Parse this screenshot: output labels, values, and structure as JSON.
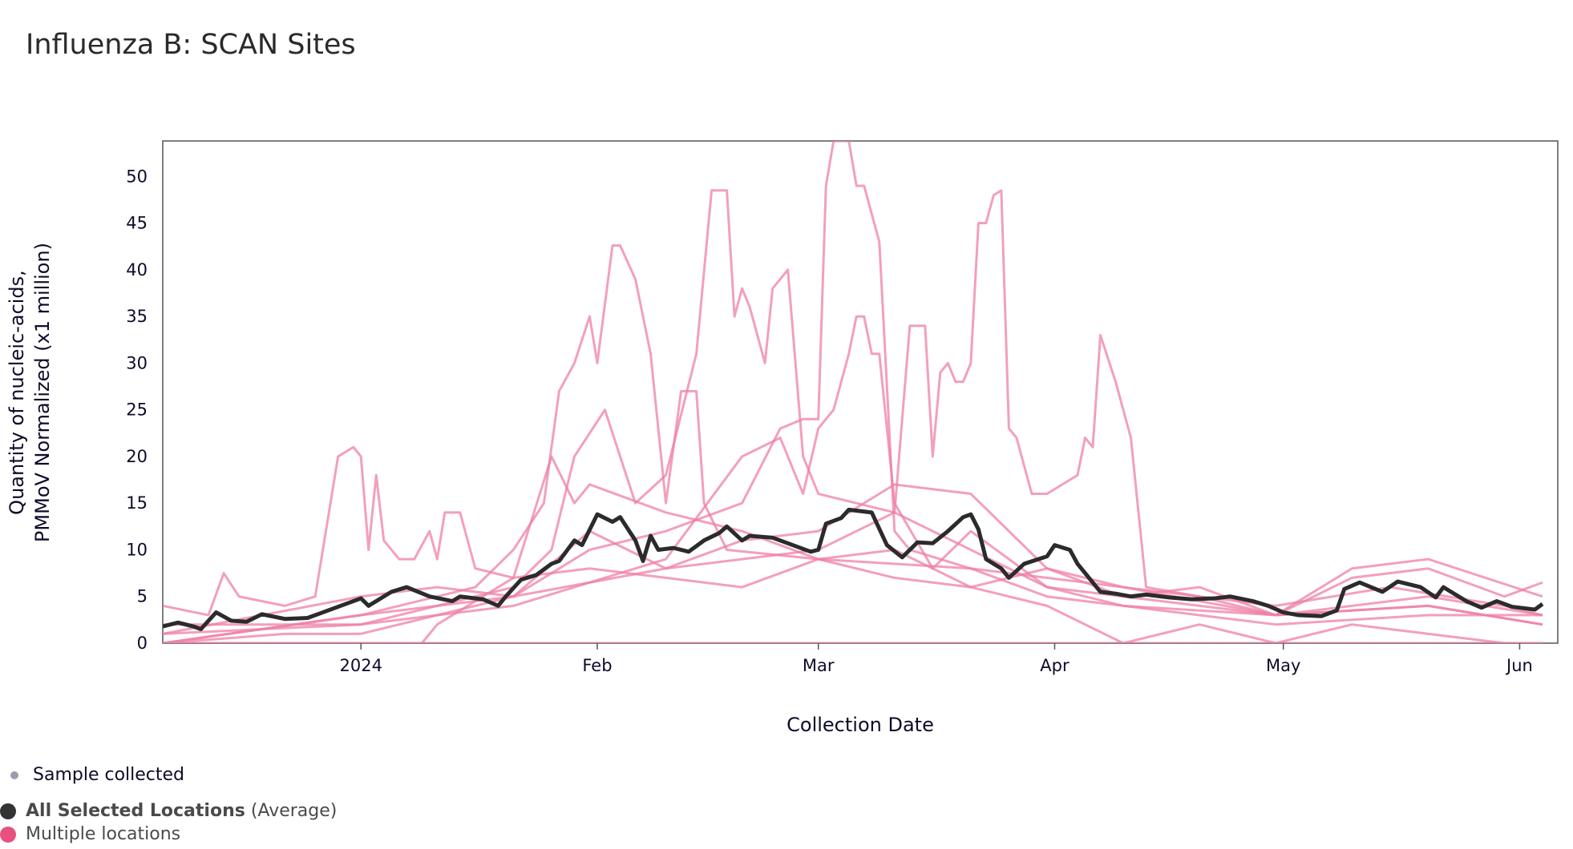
{
  "title": "Influenza B: SCAN Sites",
  "legend": {
    "sample": "Sample collected",
    "average_bold": "All Selected Locations",
    "average_suffix": "(Average)",
    "multiple": "Multiple locations"
  },
  "colors": {
    "average": "#2b2b2b",
    "locations": "#ef7fa6",
    "sample_dot": "#9a9cab",
    "multiple_dot": "#e8507f"
  },
  "chart_data": {
    "type": "line",
    "title": "Influenza B: SCAN Sites",
    "xlabel": "Collection Date",
    "ylabel": [
      "Quantity of nucleic-acids,",
      "PMMoV Normalized (x1 million)"
    ],
    "x_unit": "days since 2024-01-01",
    "xlim": [
      -26,
      157
    ],
    "ylim": [
      0,
      53.8
    ],
    "yticks": [
      0,
      5,
      10,
      15,
      20,
      25,
      30,
      35,
      40,
      45,
      50
    ],
    "xticks": [
      {
        "x": 0,
        "label": "2024"
      },
      {
        "x": 31,
        "label": "Feb"
      },
      {
        "x": 60,
        "label": "Mar"
      },
      {
        "x": 91,
        "label": "Apr"
      },
      {
        "x": 121,
        "label": "May"
      },
      {
        "x": 152,
        "label": "Jun"
      }
    ],
    "average": {
      "name": "All Selected Locations (Average)",
      "x": [
        -26,
        -24,
        -22,
        -21,
        -19,
        -17,
        -15,
        -13,
        -10,
        -7,
        -5,
        -2,
        0,
        1,
        4,
        6,
        9,
        12,
        13,
        16,
        18,
        19,
        21,
        23,
        25,
        26,
        28,
        29,
        31,
        33,
        34,
        36,
        37,
        38,
        39,
        41,
        43,
        45,
        47,
        48,
        50,
        51,
        54,
        56,
        59,
        60,
        61,
        63,
        64,
        67,
        69,
        71,
        73,
        75,
        77,
        79,
        80,
        81,
        82,
        84,
        85,
        87,
        90,
        91,
        93,
        94,
        97,
        99,
        101,
        103,
        106,
        109,
        112,
        114,
        117,
        119,
        121,
        123,
        126,
        128,
        129,
        131,
        134,
        136,
        139,
        141,
        142,
        145,
        147,
        149,
        151,
        154,
        155
      ],
      "y": [
        1.8,
        2.2,
        1.8,
        1.5,
        3.3,
        2.4,
        2.3,
        3.1,
        2.6,
        2.7,
        3.3,
        4.2,
        4.8,
        4.0,
        5.5,
        6.0,
        5.0,
        4.5,
        5.0,
        4.7,
        4.0,
        5.0,
        6.8,
        7.3,
        8.5,
        8.8,
        11,
        10.5,
        13.8,
        13,
        13.5,
        11,
        8.8,
        11.5,
        10,
        10.2,
        9.8,
        11,
        11.8,
        12.5,
        11,
        11.5,
        11.3,
        10.7,
        9.8,
        10,
        12.8,
        13.4,
        14.3,
        14,
        10.5,
        9.2,
        10.8,
        10.7,
        12,
        13.5,
        13.8,
        12.2,
        9,
        8,
        7,
        8.5,
        9.3,
        10.5,
        10,
        8.5,
        5.5,
        5.3,
        5,
        5.2,
        4.9,
        4.7,
        4.8,
        5.0,
        4.5,
        4,
        3.3,
        3.0,
        2.9,
        3.5,
        5.8,
        6.5,
        5.5,
        6.6,
        6.0,
        4.9,
        6.0,
        4.5,
        3.8,
        4.5,
        3.9,
        3.6,
        4.2
      ]
    },
    "series": [
      {
        "x": [
          -26,
          -10,
          0,
          20,
          30,
          40,
          50,
          55,
          58,
          60,
          61,
          62,
          64,
          65,
          66,
          68,
          70,
          72,
          80,
          90,
          100,
          120,
          140,
          155
        ],
        "y": [
          0,
          1,
          1,
          5,
          10,
          12,
          15,
          23,
          24,
          24,
          49,
          53.8,
          53.8,
          49,
          49,
          43,
          12,
          10,
          8,
          5,
          4,
          2,
          3,
          3
        ]
      },
      {
        "x": [
          -26,
          0,
          20,
          25,
          28,
          32,
          36,
          40,
          44,
          46,
          48,
          49,
          50,
          51,
          53,
          54,
          56,
          58,
          60,
          70,
          80,
          90,
          100,
          120,
          140,
          155
        ],
        "y": [
          2,
          2,
          6,
          10,
          20,
          25,
          15,
          18,
          31,
          48.5,
          48.5,
          35,
          38,
          36,
          30,
          38,
          40,
          20,
          16,
          14,
          10,
          6,
          4,
          3,
          4,
          2
        ]
      },
      {
        "x": [
          -26,
          0,
          20,
          40,
          60,
          70,
          72,
          74,
          75,
          76,
          77,
          78,
          79,
          80,
          81,
          82,
          83,
          84,
          85,
          86,
          88,
          90,
          94,
          95,
          96,
          97,
          99,
          101,
          103,
          110,
          120,
          135,
          150,
          155
        ],
        "y": [
          0,
          3,
          5,
          8,
          10,
          14,
          34,
          34,
          20,
          29,
          30,
          28,
          28,
          30,
          45,
          45,
          48,
          48.5,
          23,
          22,
          16,
          16,
          18,
          22,
          21,
          33,
          28,
          22,
          6,
          5,
          4,
          6,
          4,
          3
        ]
      },
      {
        "x": [
          -26,
          0,
          15,
          20,
          24,
          26,
          28,
          30,
          31,
          33,
          34,
          36,
          38,
          40,
          42,
          44,
          45,
          48,
          60,
          80,
          100,
          120,
          140,
          155
        ],
        "y": [
          0,
          3,
          6,
          10,
          15,
          27,
          30,
          35,
          30,
          42.6,
          42.6,
          39,
          31,
          15,
          27,
          27,
          15,
          10,
          9,
          8,
          6,
          3,
          4,
          2
        ]
      },
      {
        "x": [
          -26,
          -20,
          -18,
          -16,
          -10,
          -6,
          -3,
          -1,
          0,
          1,
          2,
          3,
          5,
          7,
          9,
          10,
          11,
          13,
          15,
          20,
          25,
          28,
          30,
          40,
          50,
          60,
          70,
          80,
          90,
          100,
          110,
          120,
          130,
          140,
          155
        ],
        "y": [
          4,
          3,
          7.5,
          5,
          4,
          5,
          20,
          21,
          20,
          10,
          18,
          11,
          9,
          9,
          12,
          9,
          14,
          14,
          8,
          7,
          20,
          15,
          17,
          14,
          12,
          9,
          7,
          6,
          8,
          5,
          6,
          3,
          8,
          9,
          5
        ]
      },
      {
        "x": [
          -26,
          0,
          20,
          40,
          50,
          55,
          58,
          60,
          62,
          64,
          65,
          66,
          67,
          68,
          70,
          75,
          80,
          90,
          100,
          120,
          140,
          155
        ],
        "y": [
          1,
          2,
          4,
          9,
          20,
          22,
          16,
          23,
          25,
          31,
          35,
          35,
          31,
          31,
          15,
          8,
          12,
          6,
          5,
          3,
          5,
          3
        ]
      },
      {
        "x": [
          -26,
          0,
          8,
          10,
          20,
          30,
          40,
          50,
          60,
          70,
          80,
          90,
          100,
          110,
          120,
          130,
          140,
          150,
          155
        ],
        "y": [
          0,
          0,
          0,
          2,
          7,
          8,
          7,
          6,
          9,
          10,
          6,
          4,
          0,
          2,
          0,
          2,
          1,
          0,
          0
        ]
      },
      {
        "x": [
          -26,
          0,
          10,
          20,
          30,
          40,
          50,
          60,
          70,
          80,
          90,
          100,
          110,
          120,
          130,
          140,
          150,
          155
        ],
        "y": [
          1,
          5,
          6,
          5,
          12,
          8,
          11,
          12,
          17,
          16,
          8,
          6,
          5,
          3,
          7,
          8,
          5,
          6.5
        ]
      },
      {
        "x": [
          -26,
          155
        ],
        "y": [
          0,
          0
        ]
      }
    ]
  }
}
